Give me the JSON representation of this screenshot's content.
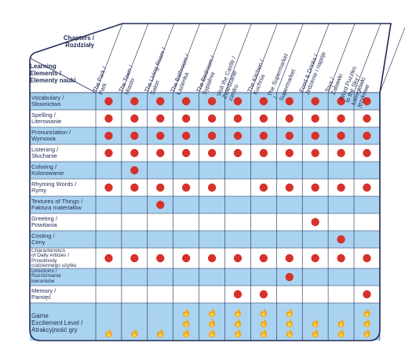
{
  "header": {
    "chapters_label": "Chapters /\nRozdziały",
    "elements_label": "Learning\nElements /\nElementy nauki"
  },
  "columns": [
    "The Park /\nPark",
    "The Town /\nMiasto",
    "The Living Room /\nSalon",
    "The Bathroom /\nŁazienka",
    "The Bedroom /\nSypialnia",
    "Visit the Castle /\nZwiedzanie zamku",
    "The Kitchen /\nKuchnia",
    "The Supermarket /\nSupermarket",
    "Food & Drinks /\nJedzenie i napoje",
    "Toys /\nZabawki",
    "Word Puzzles\nto the Sky /\nŁamigłówki językowe"
  ],
  "rows": [
    {
      "label": "Vocabulary /\nSłownictwo",
      "dots": [
        1,
        1,
        1,
        1,
        1,
        1,
        1,
        1,
        1,
        1,
        1
      ]
    },
    {
      "label": "Spelling /\nLiterowanie",
      "dots": [
        1,
        1,
        1,
        1,
        1,
        1,
        1,
        1,
        1,
        1,
        1
      ]
    },
    {
      "label": "Pronunciation /\nWymowa",
      "dots": [
        1,
        1,
        1,
        1,
        1,
        1,
        1,
        1,
        1,
        1,
        1
      ]
    },
    {
      "label": "Listening /\nSłuchanie",
      "dots": [
        1,
        1,
        1,
        1,
        1,
        1,
        1,
        1,
        1,
        1,
        1
      ]
    },
    {
      "label": "Coloring /\nKolorowanie",
      "dots": [
        0,
        1,
        0,
        0,
        0,
        0,
        0,
        0,
        0,
        0,
        0
      ]
    },
    {
      "label": "Rhyming Words /\nRymy",
      "dots": [
        1,
        1,
        1,
        1,
        1,
        0,
        1,
        1,
        1,
        1,
        1
      ]
    },
    {
      "label": "Textures of Things /\nFaktura materiałów",
      "dots": [
        0,
        0,
        1,
        0,
        0,
        0,
        0,
        0,
        0,
        0,
        0
      ]
    },
    {
      "label": "Greeting /\nPowitania",
      "dots": [
        0,
        0,
        0,
        0,
        0,
        0,
        0,
        0,
        1,
        0,
        0
      ]
    },
    {
      "label": "Costing /\nCeny",
      "dots": [
        0,
        0,
        0,
        0,
        0,
        0,
        0,
        0,
        0,
        1,
        0
      ]
    },
    {
      "label": "Characteristics\nof Daily Articles /\nPrzedmioty\ncodziennego użytku",
      "dots": [
        1,
        1,
        1,
        1,
        1,
        1,
        1,
        1,
        1,
        1,
        1
      ]
    },
    {
      "label": "Directions /\nRozróżnianie\nkierunków",
      "dots": [
        0,
        0,
        0,
        0,
        0,
        0,
        0,
        1,
        0,
        0,
        0
      ]
    },
    {
      "label": "Memory /\nPamięć",
      "dots": [
        0,
        0,
        0,
        0,
        0,
        1,
        1,
        0,
        0,
        0,
        1
      ]
    }
  ],
  "game_row": {
    "label": "Game\nExcitement Level /\nAtrakcyjność gry",
    "levels": [
      1,
      1,
      1,
      3,
      3,
      3,
      3,
      3,
      2,
      2,
      3
    ]
  },
  "colors": {
    "blue_row": "#a9d3f0",
    "white_row": "#ffffff",
    "border": "#1f2a55",
    "dot": "#d6322b",
    "flame": "#f0a81c",
    "flame_inner": "#fbd54a"
  }
}
